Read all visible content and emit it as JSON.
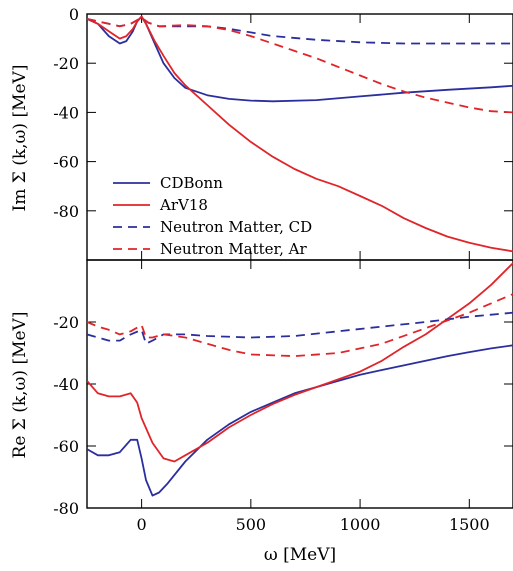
{
  "chart_data": [
    {
      "type": "line",
      "panel": "top",
      "ylabel": "Im Σ (k,ω) [MeV]",
      "xlabel": "",
      "xlim": [
        -250,
        1700
      ],
      "ylim": [
        -100,
        0
      ],
      "yticks": [
        0,
        -20,
        -40,
        -60,
        -80
      ],
      "xticks": [
        0,
        500,
        1000,
        1500
      ],
      "show_x_tick_labels": false,
      "legend": {
        "placement": "bottom-left"
      },
      "series": [
        {
          "name": "CDBonn",
          "color": "#2b2f9e",
          "dash": "solid",
          "points": [
            [
              -250,
              -2
            ],
            [
              -200,
              -4
            ],
            [
              -150,
              -9
            ],
            [
              -100,
              -12
            ],
            [
              -70,
              -11
            ],
            [
              -40,
              -7
            ],
            [
              -20,
              -3
            ],
            [
              0,
              -1
            ],
            [
              20,
              -4
            ],
            [
              60,
              -12
            ],
            [
              100,
              -20
            ],
            [
              150,
              -26
            ],
            [
              200,
              -30
            ],
            [
              300,
              -33
            ],
            [
              400,
              -34.5
            ],
            [
              500,
              -35.2
            ],
            [
              600,
              -35.5
            ],
            [
              800,
              -35
            ],
            [
              1000,
              -33.5
            ],
            [
              1200,
              -32
            ],
            [
              1400,
              -30.8
            ],
            [
              1600,
              -29.8
            ],
            [
              1700,
              -29.2
            ]
          ]
        },
        {
          "name": "ArV18",
          "color": "#e0252a",
          "dash": "solid",
          "points": [
            [
              -250,
              -2
            ],
            [
              -200,
              -4
            ],
            [
              -150,
              -7
            ],
            [
              -100,
              -10
            ],
            [
              -70,
              -9
            ],
            [
              -40,
              -6
            ],
            [
              -20,
              -3
            ],
            [
              0,
              -1
            ],
            [
              20,
              -4
            ],
            [
              60,
              -11
            ],
            [
              100,
              -17
            ],
            [
              150,
              -24
            ],
            [
              200,
              -29
            ],
            [
              300,
              -37
            ],
            [
              400,
              -45
            ],
            [
              500,
              -52
            ],
            [
              600,
              -58
            ],
            [
              700,
              -63
            ],
            [
              800,
              -67
            ],
            [
              900,
              -70
            ],
            [
              1000,
              -74
            ],
            [
              1100,
              -78
            ],
            [
              1200,
              -83
            ],
            [
              1300,
              -87
            ],
            [
              1400,
              -90.5
            ],
            [
              1500,
              -93
            ],
            [
              1600,
              -95
            ],
            [
              1700,
              -96.5
            ]
          ]
        },
        {
          "name": "Neutron Matter, CD",
          "color": "#2b2f9e",
          "dash": "dashed",
          "points": [
            [
              -250,
              -2
            ],
            [
              -200,
              -3
            ],
            [
              -150,
              -4
            ],
            [
              -100,
              -5
            ],
            [
              -50,
              -4
            ],
            [
              0,
              -1.5
            ],
            [
              30,
              -3.5
            ],
            [
              80,
              -5
            ],
            [
              200,
              -5
            ],
            [
              300,
              -5
            ],
            [
              400,
              -6
            ],
            [
              500,
              -7.5
            ],
            [
              600,
              -9
            ],
            [
              800,
              -10.5
            ],
            [
              1000,
              -11.5
            ],
            [
              1200,
              -12
            ],
            [
              1400,
              -12
            ],
            [
              1700,
              -12
            ]
          ]
        },
        {
          "name": "Neutron Matter, Ar",
          "color": "#e0252a",
          "dash": "dashed",
          "points": [
            [
              -250,
              -2
            ],
            [
              -200,
              -3
            ],
            [
              -150,
              -4
            ],
            [
              -100,
              -5
            ],
            [
              -50,
              -4
            ],
            [
              0,
              -1.5
            ],
            [
              30,
              -3.5
            ],
            [
              80,
              -5
            ],
            [
              200,
              -4.5
            ],
            [
              300,
              -5
            ],
            [
              400,
              -6.5
            ],
            [
              500,
              -9
            ],
            [
              600,
              -12
            ],
            [
              700,
              -15
            ],
            [
              800,
              -18
            ],
            [
              900,
              -21.5
            ],
            [
              1000,
              -25
            ],
            [
              1100,
              -28.5
            ],
            [
              1200,
              -31.5
            ],
            [
              1300,
              -34
            ],
            [
              1400,
              -36
            ],
            [
              1500,
              -38
            ],
            [
              1600,
              -39.5
            ],
            [
              1700,
              -40
            ]
          ]
        }
      ]
    },
    {
      "type": "line",
      "panel": "bottom",
      "ylabel": "Re Σ (k,ω) [MeV]",
      "xlabel": "ω [MeV]",
      "xlim": [
        -250,
        1700
      ],
      "ylim": [
        -80,
        0
      ],
      "yticks": [
        -20,
        -40,
        -60,
        -80
      ],
      "xticks": [
        0,
        500,
        1000,
        1500
      ],
      "series": [
        {
          "name": "CDBonn",
          "color": "#2b2f9e",
          "dash": "solid",
          "points": [
            [
              -250,
              -61
            ],
            [
              -200,
              -63
            ],
            [
              -150,
              -63
            ],
            [
              -100,
              -62
            ],
            [
              -50,
              -58
            ],
            [
              -20,
              -58
            ],
            [
              0,
              -64
            ],
            [
              20,
              -71
            ],
            [
              50,
              -76
            ],
            [
              80,
              -75
            ],
            [
              120,
              -72
            ],
            [
              200,
              -65
            ],
            [
              300,
              -58
            ],
            [
              400,
              -53
            ],
            [
              500,
              -49
            ],
            [
              600,
              -46
            ],
            [
              700,
              -43
            ],
            [
              800,
              -41
            ],
            [
              900,
              -39
            ],
            [
              1000,
              -37
            ],
            [
              1100,
              -35.5
            ],
            [
              1200,
              -34
            ],
            [
              1300,
              -32.5
            ],
            [
              1400,
              -31
            ],
            [
              1500,
              -29.7
            ],
            [
              1600,
              -28.5
            ],
            [
              1700,
              -27.5
            ]
          ]
        },
        {
          "name": "ArV18",
          "color": "#e0252a",
          "dash": "solid",
          "points": [
            [
              -250,
              -39
            ],
            [
              -200,
              -43
            ],
            [
              -150,
              -44
            ],
            [
              -100,
              -44
            ],
            [
              -50,
              -43
            ],
            [
              -20,
              -46
            ],
            [
              0,
              -51
            ],
            [
              50,
              -59
            ],
            [
              100,
              -64
            ],
            [
              150,
              -65
            ],
            [
              200,
              -63
            ],
            [
              300,
              -59
            ],
            [
              400,
              -54
            ],
            [
              500,
              -50
            ],
            [
              600,
              -46.5
            ],
            [
              700,
              -43.5
            ],
            [
              800,
              -41
            ],
            [
              900,
              -38.5
            ],
            [
              1000,
              -36
            ],
            [
              1100,
              -32.5
            ],
            [
              1200,
              -28
            ],
            [
              1300,
              -24
            ],
            [
              1400,
              -19
            ],
            [
              1500,
              -14
            ],
            [
              1600,
              -8
            ],
            [
              1700,
              -1
            ]
          ]
        },
        {
          "name": "Neutron Matter, CD",
          "color": "#2b2f9e",
          "dash": "dashed",
          "points": [
            [
              -250,
              -24
            ],
            [
              -200,
              -25
            ],
            [
              -150,
              -26
            ],
            [
              -100,
              -26
            ],
            [
              -50,
              -24
            ],
            [
              0,
              -22.5
            ],
            [
              20,
              -27
            ],
            [
              50,
              -26
            ],
            [
              100,
              -24
            ],
            [
              200,
              -24
            ],
            [
              300,
              -24.5
            ],
            [
              500,
              -25
            ],
            [
              700,
              -24.5
            ],
            [
              900,
              -23
            ],
            [
              1100,
              -21.5
            ],
            [
              1300,
              -20
            ],
            [
              1500,
              -18.3
            ],
            [
              1700,
              -17
            ]
          ]
        },
        {
          "name": "Neutron Matter, Ar",
          "color": "#e0252a",
          "dash": "dashed",
          "points": [
            [
              -250,
              -20
            ],
            [
              -200,
              -21.5
            ],
            [
              -150,
              -22.5
            ],
            [
              -100,
              -24
            ],
            [
              -50,
              -23
            ],
            [
              0,
              -21
            ],
            [
              20,
              -25
            ],
            [
              50,
              -25
            ],
            [
              100,
              -24
            ],
            [
              200,
              -25
            ],
            [
              300,
              -27
            ],
            [
              400,
              -29
            ],
            [
              500,
              -30.5
            ],
            [
              700,
              -31
            ],
            [
              900,
              -30
            ],
            [
              1100,
              -27
            ],
            [
              1300,
              -22
            ],
            [
              1500,
              -17
            ],
            [
              1700,
              -11
            ]
          ]
        }
      ]
    }
  ]
}
